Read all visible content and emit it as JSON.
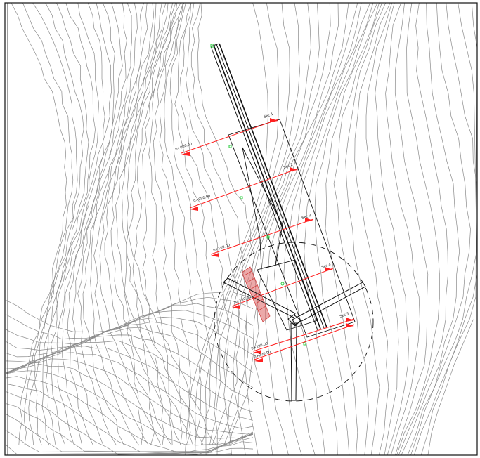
{
  "drawing": {
    "colors": {
      "background": "#ffffff",
      "frame": "#111111",
      "contour": "#8a8a8a",
      "road": "#111111",
      "section": "#ff2020",
      "slope_hatch": "#d04040",
      "vertex": "#2ecc40"
    },
    "section_labels": [
      "0+000.00",
      "0+050.00",
      "0+100.00",
      "0+150.00",
      "0+200.00",
      "0+200.00"
    ],
    "station_labels": [
      "Sec 1",
      "Sec 2",
      "Sec 3",
      "Sec 4",
      "Sec 5"
    ]
  }
}
